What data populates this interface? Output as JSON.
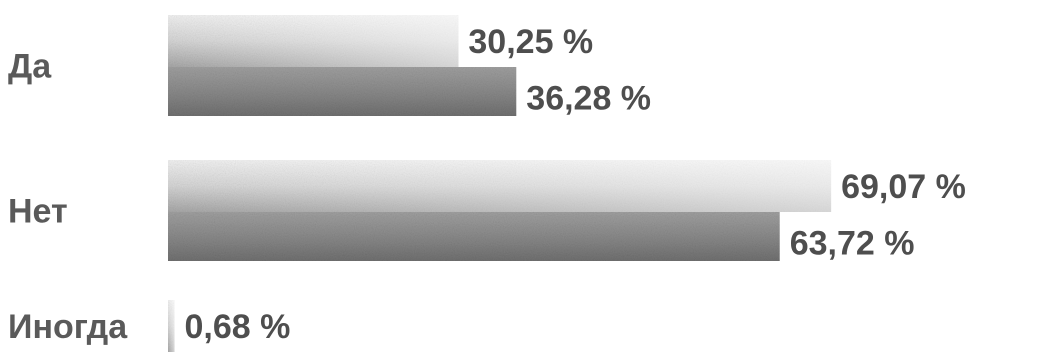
{
  "chart_data": {
    "type": "bar",
    "orientation": "horizontal",
    "categories": [
      "Да",
      "Нет",
      "Иногда"
    ],
    "series": [
      {
        "values": [
          30.25,
          69.07,
          0.68
        ],
        "labels": [
          "30,25 %",
          "69,07 %",
          "0,68 %"
        ],
        "color": "#d9d9d9"
      },
      {
        "values": [
          36.28,
          63.72,
          null
        ],
        "labels": [
          "36,28 %",
          "63,72 %",
          ""
        ],
        "color": "#8c8c8c"
      }
    ],
    "title": "",
    "xlabel": "",
    "ylabel": "",
    "xlim": [
      0,
      100
    ],
    "grid": false,
    "legend": "none"
  }
}
